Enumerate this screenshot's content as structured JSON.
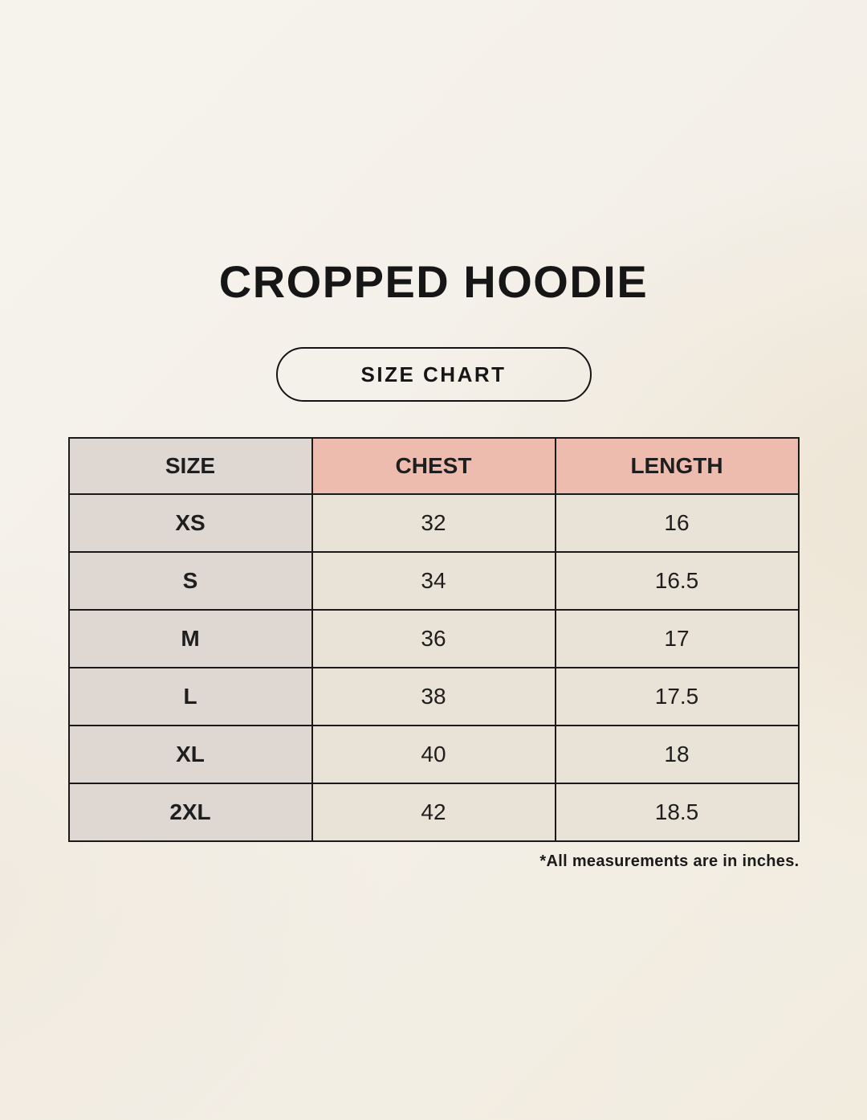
{
  "page": {
    "title": "CROPPED HOODIE",
    "badge_label": "SIZE CHART",
    "footnote": "*All measurements are in inches."
  },
  "chart_data": {
    "type": "table",
    "title": "CROPPED HOODIE size chart",
    "columns": [
      "SIZE",
      "CHEST",
      "LENGTH"
    ],
    "rows": [
      [
        "XS",
        "32",
        "16"
      ],
      [
        "S",
        "34",
        "16.5"
      ],
      [
        "M",
        "36",
        "17"
      ],
      [
        "L",
        "38",
        "17.5"
      ],
      [
        "XL",
        "40",
        "18"
      ],
      [
        "2XL",
        "42",
        "18.5"
      ]
    ],
    "units": "inches"
  },
  "colors": {
    "background": "#f4f0e9",
    "header_accent": "#edbcae",
    "size_column": "#ded7d2",
    "data_cell": "#e9e2d7",
    "border": "#1a1a1a",
    "text": "#1c1c1c"
  }
}
